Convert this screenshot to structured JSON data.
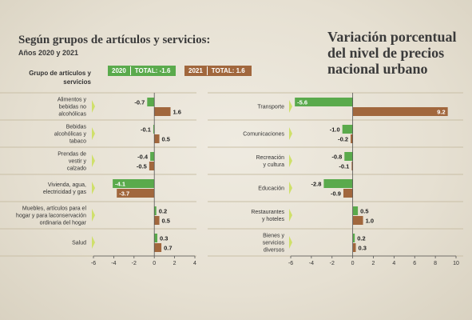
{
  "subtitle": "Según grupos de artículos y servicios:",
  "years": "Años 2020 y 2021",
  "title": "Variación porcentual del nivel de precios nacional urbano",
  "group_header": "Grupo de artículos y servicios",
  "legend": {
    "y2020": "2020",
    "total2020": "TOTAL: -1.6",
    "y2021": "2021",
    "total2021": "TOTAL: 1.6"
  },
  "colors": {
    "y2020": "#5aaa4c",
    "y2021": "#a1673d",
    "arrow": "#cfe06a",
    "axis": "#555555",
    "separator": "#c9bfa6"
  },
  "chart_data": [
    {
      "type": "bar",
      "orientation": "horizontal",
      "categories": [
        [
          "Alimentos y",
          "bebidas no",
          "alcohólicas"
        ],
        [
          "Bebidas",
          "alcohólicas y",
          "tabaco"
        ],
        [
          "Prendas de",
          "vestir y",
          "calzado"
        ],
        [
          "Vivienda, agua,",
          "electricidad y gas"
        ],
        [
          "Muebles, artículos para el",
          "hogar y para laconservación",
          "ordinaria del hogar"
        ],
        [
          "Salud"
        ]
      ],
      "series": [
        {
          "name": "2020",
          "values": [
            -0.7,
            -0.1,
            -0.4,
            -4.1,
            0.2,
            0.3
          ]
        },
        {
          "name": "2021",
          "values": [
            1.6,
            0.5,
            -0.5,
            -3.7,
            0.5,
            0.7
          ]
        }
      ],
      "labels": {
        "2020": [
          "-0.7",
          "-0.1",
          "-0.4",
          "-4.1",
          "0.2",
          "0.3"
        ],
        "2021": [
          "1.6",
          "0.5",
          "-0.5",
          "-3.7",
          "0.5",
          "0.7"
        ]
      },
      "xlim": [
        -6,
        4
      ],
      "xticks": [
        -6,
        -4,
        -2,
        0,
        2,
        4
      ]
    },
    {
      "type": "bar",
      "orientation": "horizontal",
      "categories": [
        [
          "Transporte"
        ],
        [
          "Comunicaciones"
        ],
        [
          "Recreación",
          "y cultura"
        ],
        [
          "Educación"
        ],
        [
          "Restaurantes",
          "y hoteles"
        ],
        [
          "Bienes y",
          "servicios",
          "diversos"
        ]
      ],
      "series": [
        {
          "name": "2020",
          "values": [
            -5.6,
            -1.0,
            -0.8,
            -2.8,
            0.5,
            0.2
          ]
        },
        {
          "name": "2021",
          "values": [
            9.2,
            -0.2,
            -0.1,
            -0.9,
            1.0,
            0.3
          ]
        }
      ],
      "labels": {
        "2020": [
          "-5.6",
          "-1.0",
          "-0.8",
          "-2.8",
          "0.5",
          "0.2"
        ],
        "2021": [
          "9.2",
          "-0.2",
          "-0.1",
          "-0.9",
          "1.0",
          "0.3"
        ]
      },
      "xlim": [
        -6,
        10
      ],
      "xticks": [
        -6,
        -4,
        -2,
        0,
        2,
        4,
        6,
        8,
        10
      ]
    }
  ]
}
